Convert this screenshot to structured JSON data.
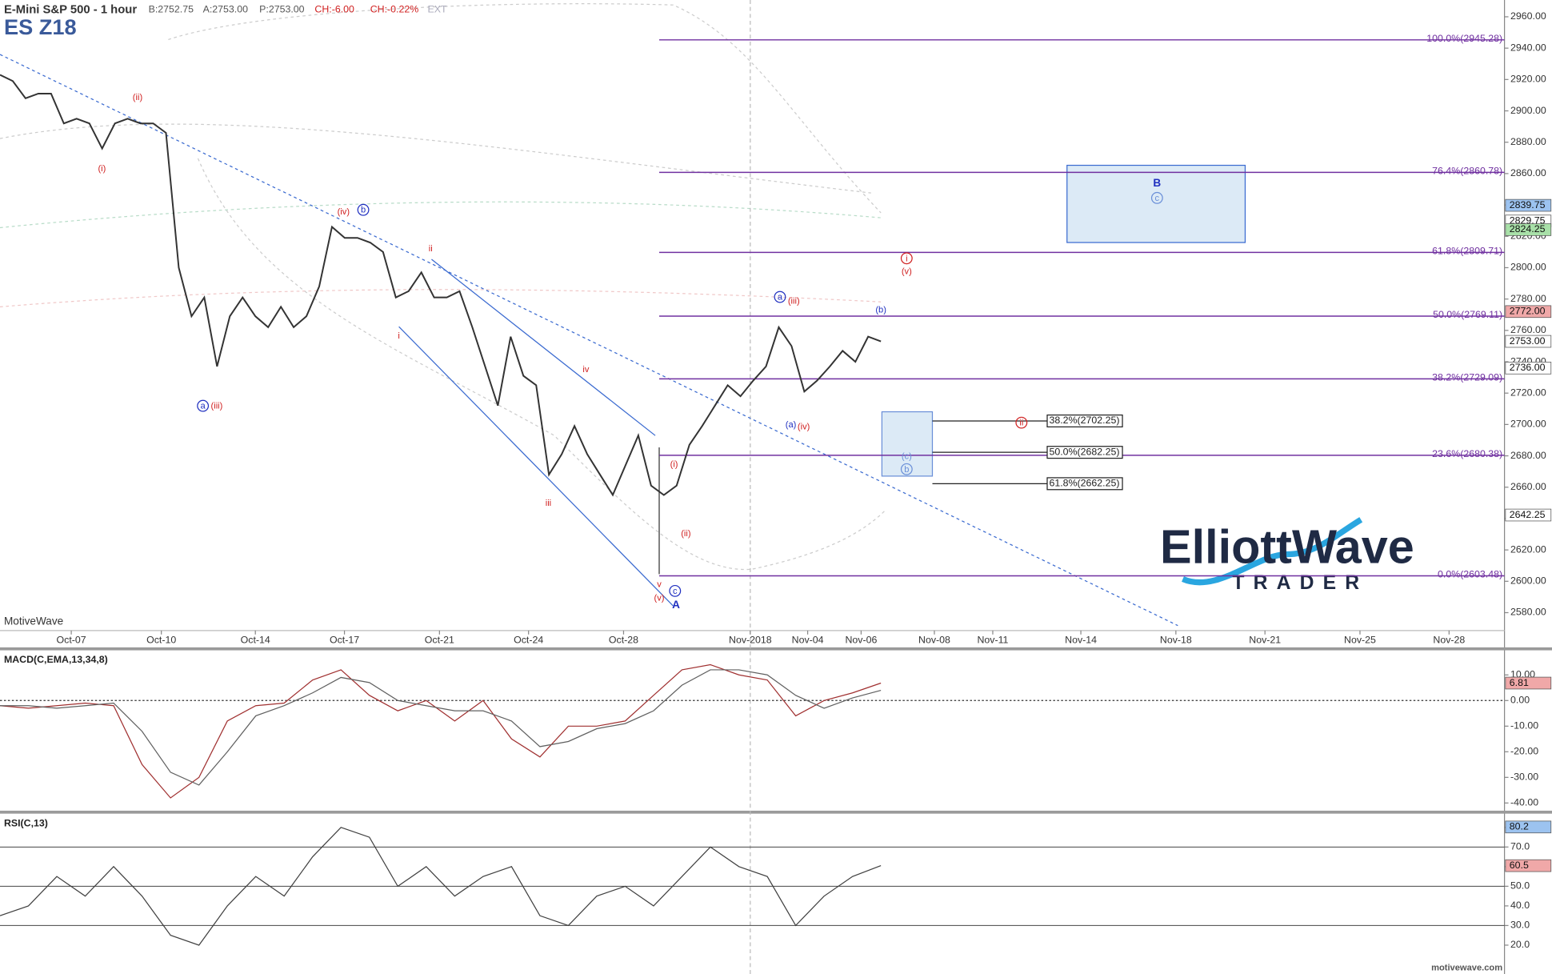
{
  "branding": {
    "logo_top": "ElliottWave",
    "logo_bottom": "TRADER",
    "site": "motivewave.com"
  },
  "chart_data": [
    {
      "type": "line",
      "title": "E-Mini S&P 500 - 1 hour",
      "symbol": "ES Z18",
      "watermark": "MotiveWave",
      "quote": [
        "B:2752.75",
        "A:2753.00",
        "P:2753.00",
        "CH:-6.00",
        "CH:-0.22%",
        "EXT"
      ],
      "xtick_labels": [
        "Oct-07",
        "Oct-10",
        "Oct-14",
        "Oct-17",
        "Oct-21",
        "Oct-24",
        "Oct-28",
        "Nov-2018",
        "Nov-04",
        "Nov-06",
        "Nov-08",
        "Nov-11",
        "Nov-14",
        "Nov-18",
        "Nov-21",
        "Nov-25",
        "Nov-28"
      ],
      "ylim": [
        2568.6,
        2970.7
      ],
      "yticks": [
        {
          "value": 2580,
          "label": "2580.00"
        },
        {
          "value": 2600,
          "label": "2600.00"
        },
        {
          "value": 2620,
          "label": "2620.00"
        },
        {
          "value": 2640,
          "label": "2640.00"
        },
        {
          "value": 2660,
          "label": "2660.00"
        },
        {
          "value": 2680,
          "label": "2680.00"
        },
        {
          "value": 2700,
          "label": "2700.00"
        },
        {
          "value": 2720,
          "label": "2720.00"
        },
        {
          "value": 2740,
          "label": "2740.00"
        },
        {
          "value": 2760,
          "label": "2760.00"
        },
        {
          "value": 2780,
          "label": "2780.00"
        },
        {
          "value": 2800,
          "label": "2800.00"
        },
        {
          "value": 2820,
          "label": "2820.00"
        },
        {
          "value": 2840,
          "label": "2840.00"
        },
        {
          "value": 2860,
          "label": "2860.00"
        },
        {
          "value": 2880,
          "label": "2880.00"
        },
        {
          "value": 2900,
          "label": "2900.00"
        },
        {
          "value": 2920,
          "label": "2920.00"
        },
        {
          "value": 2940,
          "label": "2940.00"
        },
        {
          "value": 2960,
          "label": "2960.00"
        }
      ],
      "series": [
        {
          "color": "#333333",
          "values": [
            2923,
            2919,
            2908,
            2911,
            2911,
            2892,
            2895,
            2892,
            2876,
            2892,
            2895,
            2892,
            2892,
            2886,
            2800,
            2769,
            2781,
            2737,
            2769,
            2781,
            2769,
            2762,
            2775,
            2762,
            2769,
            2788,
            2826,
            2819,
            2819,
            2816,
            2810,
            2781,
            2785,
            2797,
            2781,
            2781,
            2785,
            2762,
            2737,
            2712,
            2756,
            2731,
            2725,
            2668,
            2681,
            2699,
            2681,
            2668,
            2655,
            2674,
            2693,
            2661,
            2655,
            2661,
            2687,
            2699,
            2712,
            2725,
            2718,
            2728,
            2737,
            2762,
            2750,
            2721,
            2728,
            2737,
            2747,
            2740,
            2756,
            2753
          ]
        }
      ],
      "price_tags": [
        {
          "value": 2839.75,
          "label": "2839.75",
          "color": "#9cc3f0"
        },
        {
          "value": 2829.75,
          "label": "2829.75",
          "color": "#ffffff"
        },
        {
          "value": 2824.25,
          "label": "2824.25",
          "color": "#a8e0a8"
        },
        {
          "value": 2772.0,
          "label": "2772.00",
          "color": "#f0a8a8"
        },
        {
          "value": 2753.0,
          "label": "2753.00",
          "color": "#ffffff"
        },
        {
          "value": 2736.0,
          "label": "2736.00",
          "color": "#ffffff"
        },
        {
          "value": 2642.25,
          "label": "2642.25",
          "color": "#ffffff"
        }
      ],
      "fib_color": "#7030a0",
      "fib_levels": [
        {
          "value": 2945.28,
          "label": "100.0%(2945.28)"
        },
        {
          "value": 2860.78,
          "label": "76.4%(2860.78)"
        },
        {
          "value": 2809.71,
          "label": "61.8%(2809.71)"
        },
        {
          "value": 2769.11,
          "label": "50.0%(2769.11)"
        },
        {
          "value": 2729.09,
          "label": "38.2%(2729.09)"
        },
        {
          "value": 2680.38,
          "label": "23.6%(2680.38)"
        },
        {
          "value": 2603.48,
          "label": "0.0%(2603.48)"
        }
      ],
      "fib_small": [
        {
          "value": 2702.25,
          "label": "38.2%(2702.25)"
        },
        {
          "value": 2682.25,
          "label": "50.0%(2682.25)"
        },
        {
          "value": 2662.25,
          "label": "61.8%(2662.25)"
        }
      ],
      "annotations": [
        {
          "text": "(ii)",
          "color": "#d02020",
          "circled": false
        },
        {
          "text": "(i)",
          "color": "#d02020",
          "circled": false
        },
        {
          "text": "(iv)",
          "color": "#d02020",
          "circled": false
        },
        {
          "text": "b",
          "color": "#2030c0",
          "circled": true
        },
        {
          "text": "a",
          "color": "#2030c0",
          "circled": true
        },
        {
          "text": "(iii)",
          "color": "#d02020",
          "circled": false
        },
        {
          "text": "ii",
          "color": "#d02020",
          "circled": false
        },
        {
          "text": "i",
          "color": "#d02020",
          "circled": false
        },
        {
          "text": "iv",
          "color": "#d02020",
          "circled": false
        },
        {
          "text": "iii",
          "color": "#d02020",
          "circled": false
        },
        {
          "text": "v",
          "color": "#d02020",
          "circled": false
        },
        {
          "text": "(v)",
          "color": "#d02020",
          "circled": false
        },
        {
          "text": "c",
          "color": "#2030c0",
          "circled": true
        },
        {
          "text": "A",
          "color": "#2030c0",
          "circled": false
        },
        {
          "text": "(i)",
          "color": "#d02020",
          "circled": false
        },
        {
          "text": "(ii)",
          "color": "#d02020",
          "circled": false
        },
        {
          "text": "a",
          "color": "#2030c0",
          "circled": true
        },
        {
          "text": "(iii)",
          "color": "#d02020",
          "circled": false
        },
        {
          "text": "(a)",
          "color": "#2030c0",
          "circled": false
        },
        {
          "text": "(iv)",
          "color": "#d02020",
          "circled": false
        },
        {
          "text": "(b)",
          "color": "#2030c0",
          "circled": false
        },
        {
          "text": "i",
          "color": "#d02020",
          "circled": true
        },
        {
          "text": "(v)",
          "color": "#d02020",
          "circled": false
        },
        {
          "text": "ii",
          "color": "#d02020",
          "circled": true
        },
        {
          "text": "B",
          "color": "#2030c0",
          "circled": false
        },
        {
          "text": "c",
          "color": "#6a8fd8",
          "circled": true
        },
        {
          "text": "(c)",
          "color": "#6a8fd8",
          "circled": false
        },
        {
          "text": "b",
          "color": "#6a8fd8",
          "circled": true
        }
      ]
    },
    {
      "type": "line",
      "title": "MACD(C,EMA,13,34,8)",
      "ylim": [
        -43,
        19.6
      ],
      "yticks": [
        {
          "value": 10,
          "label": "10.00"
        },
        {
          "value": 0,
          "label": "0.00"
        },
        {
          "value": -10,
          "label": "-10.00"
        },
        {
          "value": -20,
          "label": "-20.00"
        },
        {
          "value": -30,
          "label": "-30.00"
        },
        {
          "value": -40,
          "label": "-40.00"
        }
      ],
      "series": [
        {
          "color": "#a03030",
          "values": [
            -2,
            -3,
            -2,
            -1,
            -2,
            -25,
            -38,
            -30,
            -8,
            -2,
            -1,
            8,
            12,
            2,
            -4,
            0,
            -8,
            0,
            -15,
            -22,
            -10,
            -10,
            -8,
            2,
            12,
            14,
            10,
            8,
            -6,
            0,
            3,
            6.81
          ]
        },
        {
          "color": "#606060",
          "values": [
            -2,
            -2,
            -3,
            -2,
            -1,
            -12,
            -28,
            -33,
            -20,
            -6,
            -2,
            3,
            9,
            7,
            0,
            -2,
            -4,
            -4,
            -8,
            -18,
            -16,
            -11,
            -9,
            -4,
            6,
            12,
            12,
            10,
            2,
            -3,
            1,
            4
          ]
        }
      ],
      "price_tags": [
        {
          "value": 6.81,
          "label": "6.81",
          "color": "#f0a8a8"
        }
      ]
    },
    {
      "type": "line",
      "title": "RSI(C,13)",
      "ylim": [
        5.3,
        87
      ],
      "yticks": [
        {
          "value": 20,
          "label": "20.0"
        },
        {
          "value": 30,
          "label": "30.0"
        },
        {
          "value": 40,
          "label": "40.0"
        },
        {
          "value": 50,
          "label": "50.0"
        },
        {
          "value": 60,
          "label": "60.0"
        },
        {
          "value": 70,
          "label": "70.0"
        },
        {
          "value": 80,
          "label": "80.0"
        }
      ],
      "levels": [
        70,
        50,
        30
      ],
      "series": [
        {
          "color": "#404040",
          "values": [
            35,
            40,
            55,
            45,
            60,
            45,
            25,
            20,
            40,
            55,
            45,
            65,
            80,
            75,
            50,
            60,
            45,
            55,
            60,
            35,
            30,
            45,
            50,
            40,
            55,
            70,
            60,
            55,
            30,
            45,
            55,
            60.5
          ]
        }
      ],
      "price_tags": [
        {
          "value": 80.2,
          "label": "80.2",
          "color": "#9cc3f0"
        },
        {
          "value": 60.5,
          "label": "60.5",
          "color": "#f0a8a8"
        }
      ]
    }
  ]
}
